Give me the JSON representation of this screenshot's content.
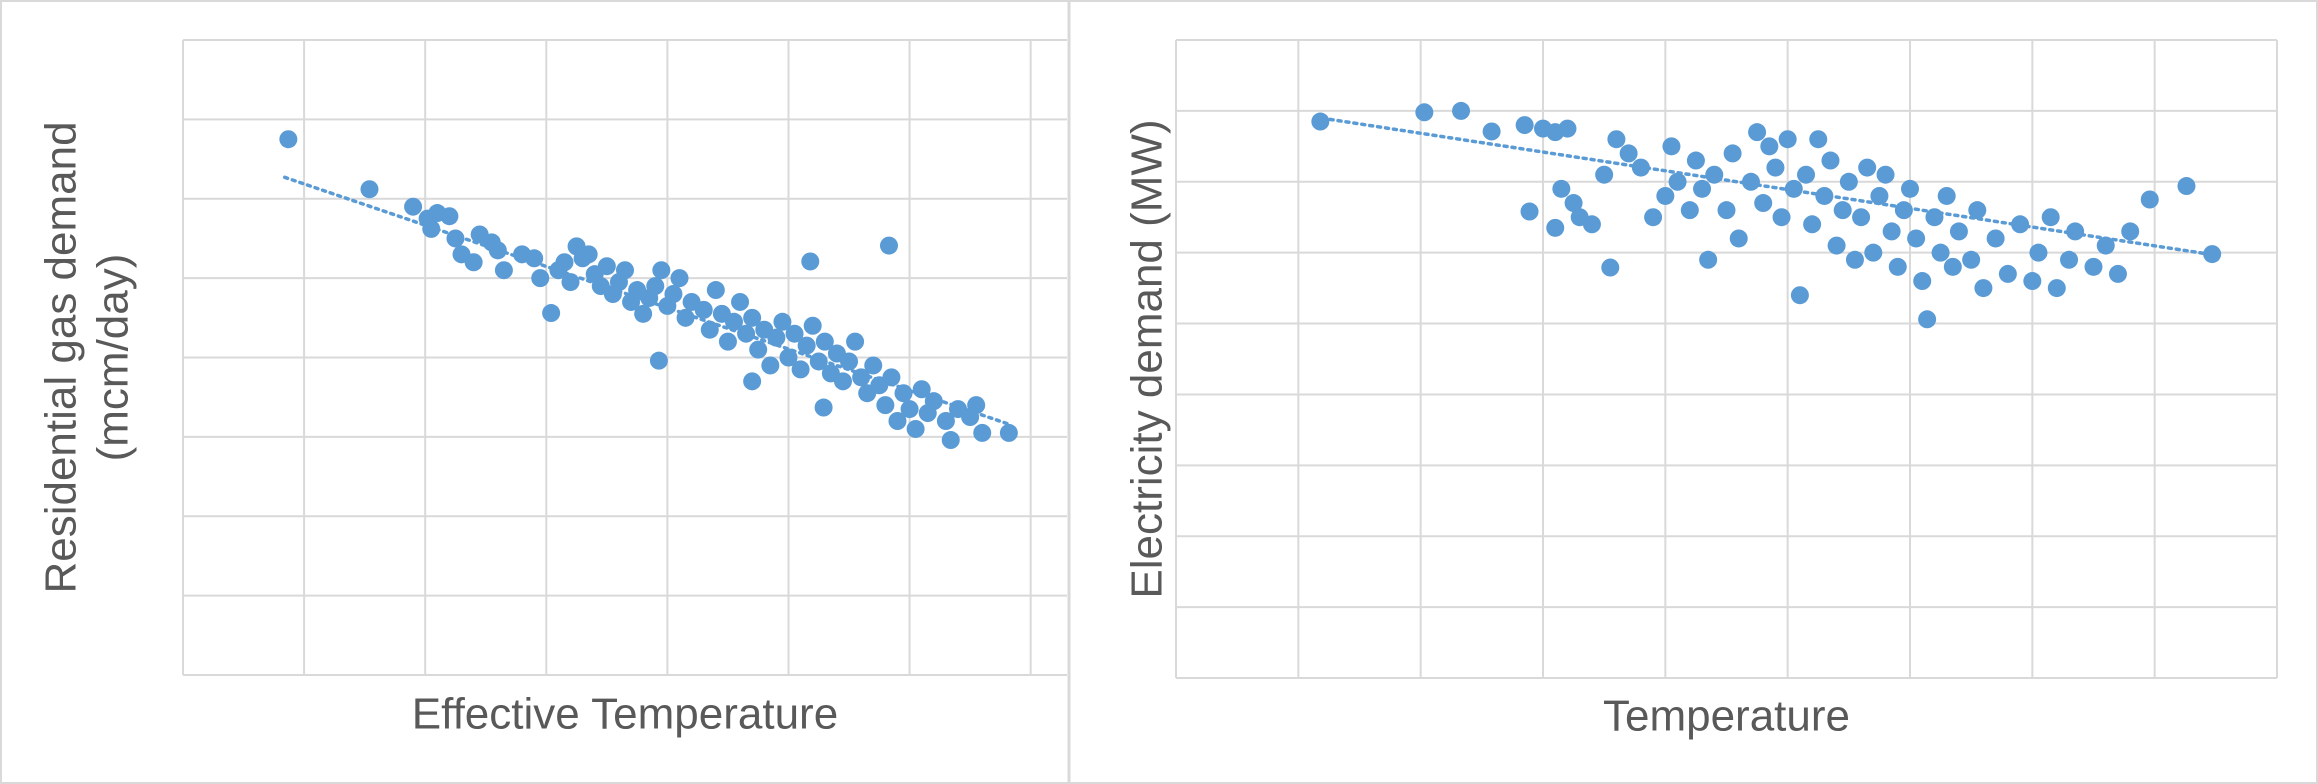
{
  "chart_data": [
    {
      "type": "scatter",
      "xlabel": "Effective Temperature",
      "ylabel": [
        "Residential gas demand",
        "(mcm/day)"
      ],
      "xlim": [
        0,
        7.3
      ],
      "ylim": [
        0,
        8
      ],
      "xticks": [
        0,
        1,
        2,
        3,
        4,
        5,
        6,
        7
      ],
      "yticks": [
        0,
        1,
        2,
        3,
        4,
        5,
        6,
        7,
        8
      ],
      "grid": true,
      "color": "#5b9bd5",
      "x": [
        0.87,
        1.54,
        1.9,
        2.02,
        2.1,
        2.2,
        2.05,
        2.25,
        2.3,
        2.4,
        2.45,
        2.55,
        2.6,
        2.65,
        2.8,
        2.9,
        2.95,
        3.1,
        3.15,
        3.2,
        3.25,
        3.3,
        3.35,
        3.4,
        3.45,
        3.5,
        3.55,
        3.6,
        3.65,
        3.7,
        3.75,
        3.8,
        3.85,
        3.9,
        3.95,
        4.0,
        4.05,
        4.1,
        4.15,
        4.2,
        4.3,
        4.35,
        4.4,
        4.45,
        4.5,
        4.55,
        4.6,
        4.65,
        4.7,
        4.75,
        4.8,
        4.85,
        4.9,
        4.95,
        5.0,
        5.05,
        5.1,
        5.18,
        5.15,
        5.2,
        5.25,
        5.29,
        5.3,
        5.35,
        5.4,
        5.45,
        5.5,
        5.55,
        5.6,
        5.65,
        5.7,
        5.75,
        5.83,
        5.8,
        5.85,
        5.9,
        5.95,
        6.0,
        6.05,
        6.1,
        6.15,
        6.2,
        6.3,
        6.34,
        6.4,
        6.5,
        6.55,
        6.6,
        6.82,
        3.04,
        3.93,
        4.7
      ],
      "y": [
        6.75,
        6.12,
        5.9,
        5.75,
        5.82,
        5.78,
        5.62,
        5.5,
        5.3,
        5.2,
        5.55,
        5.45,
        5.35,
        5.1,
        5.3,
        5.25,
        5.0,
        5.1,
        5.2,
        4.95,
        5.4,
        5.25,
        5.3,
        5.05,
        4.9,
        5.15,
        4.8,
        4.95,
        5.1,
        4.7,
        4.85,
        4.55,
        4.75,
        4.9,
        5.1,
        4.65,
        4.8,
        5.0,
        4.5,
        4.7,
        4.6,
        4.35,
        4.85,
        4.55,
        4.2,
        4.45,
        4.7,
        4.3,
        4.5,
        4.1,
        4.35,
        3.9,
        4.25,
        4.45,
        4.0,
        4.3,
        3.85,
        5.21,
        4.15,
        4.4,
        3.95,
        3.37,
        4.2,
        3.8,
        4.05,
        3.7,
        3.95,
        4.2,
        3.75,
        3.55,
        3.9,
        3.65,
        5.41,
        3.4,
        3.75,
        3.2,
        3.55,
        3.35,
        3.1,
        3.6,
        3.3,
        3.45,
        3.2,
        2.96,
        3.35,
        3.25,
        3.4,
        3.05,
        3.05,
        4.56,
        3.96,
        3.7
      ],
      "trendline": {
        "x": [
          0.84,
          6.82
        ],
        "y": [
          6.27,
          3.16
        ]
      }
    },
    {
      "type": "scatter",
      "xlabel": "Temperature",
      "ylabel": [
        "Electricity demand (MW)"
      ],
      "xlim": [
        0,
        9
      ],
      "ylim": [
        0,
        9
      ],
      "xticks": [
        0,
        1,
        2,
        3,
        4,
        5,
        6,
        7,
        8,
        9
      ],
      "yticks": [
        0,
        1,
        2,
        3,
        4,
        5,
        6,
        7,
        8,
        9
      ],
      "grid": true,
      "color": "#5b9bd5",
      "x": [
        1.18,
        2.03,
        2.33,
        2.58,
        2.85,
        3.0,
        3.1,
        3.2,
        2.89,
        3.55,
        3.15,
        3.25,
        3.3,
        3.4,
        3.5,
        3.6,
        3.7,
        3.8,
        3.9,
        4.0,
        4.05,
        4.1,
        4.2,
        4.25,
        4.3,
        4.35,
        4.4,
        4.5,
        4.55,
        4.6,
        4.7,
        4.75,
        4.8,
        4.9,
        4.95,
        5.0,
        5.05,
        5.1,
        5.15,
        5.2,
        5.3,
        5.35,
        5.4,
        5.45,
        5.5,
        5.55,
        5.6,
        5.65,
        5.7,
        5.75,
        5.8,
        5.85,
        5.9,
        5.95,
        6.0,
        6.05,
        6.1,
        6.14,
        6.2,
        6.25,
        6.3,
        6.35,
        6.4,
        6.5,
        6.55,
        6.6,
        6.7,
        6.8,
        6.9,
        7.0,
        7.05,
        7.15,
        7.2,
        7.3,
        7.35,
        7.5,
        7.6,
        7.7,
        7.8,
        7.96,
        8.26,
        8.47,
        4.85,
        5.25,
        3.1
      ],
      "y": [
        7.85,
        7.98,
        8.0,
        7.71,
        7.8,
        7.75,
        7.7,
        7.75,
        6.58,
        5.79,
        6.9,
        6.7,
        6.5,
        6.4,
        7.1,
        7.6,
        7.4,
        7.2,
        6.5,
        6.8,
        7.5,
        7.0,
        6.6,
        7.3,
        6.9,
        5.9,
        7.1,
        6.6,
        7.4,
        6.2,
        7.0,
        7.7,
        6.7,
        7.2,
        6.5,
        7.6,
        6.9,
        5.4,
        7.1,
        6.4,
        6.8,
        7.3,
        6.1,
        6.6,
        7.0,
        5.9,
        6.5,
        7.2,
        6.0,
        6.8,
        7.1,
        6.3,
        5.8,
        6.6,
        6.9,
        6.2,
        5.6,
        5.06,
        6.5,
        6.0,
        6.8,
        5.8,
        6.3,
        5.9,
        6.6,
        5.5,
        6.2,
        5.7,
        6.4,
        5.6,
        6.0,
        6.5,
        5.5,
        5.9,
        6.3,
        5.8,
        6.1,
        5.7,
        6.3,
        6.75,
        6.94,
        5.98,
        7.5,
        7.6,
        6.35
      ],
      "trendline": {
        "x": [
          1.26,
          8.44
        ],
        "y": [
          7.88,
          5.98
        ]
      }
    }
  ]
}
